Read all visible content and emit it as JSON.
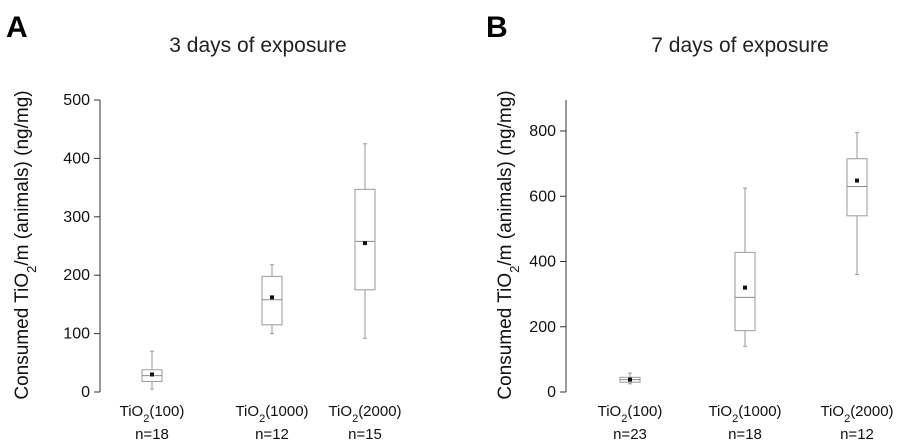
{
  "figure_labels": {
    "panel_a": "A",
    "panel_b": "B"
  },
  "chart_data": [
    {
      "type": "box",
      "panel": "A",
      "title": "3 days of exposure",
      "ylabel": "Consumed TiO2/m (animals) (ng/mg)",
      "ylim": [
        0,
        500
      ],
      "yticks": [
        0,
        100,
        200,
        300,
        400,
        500
      ],
      "categories": [
        "TiO2(100)",
        "TiO2(1000)",
        "TiO2(2000)"
      ],
      "n_labels": [
        "n=18",
        "n=12",
        "n=15"
      ],
      "boxes": [
        {
          "whisker_low": 5,
          "q1": 18,
          "median": 28,
          "q3": 38,
          "whisker_high": 70,
          "mean": 30
        },
        {
          "whisker_low": 100,
          "q1": 115,
          "median": 158,
          "q3": 198,
          "whisker_high": 218,
          "mean": 162
        },
        {
          "whisker_low": 92,
          "q1": 175,
          "median": 258,
          "q3": 347,
          "whisker_high": 425,
          "mean": 255
        }
      ]
    },
    {
      "type": "box",
      "panel": "B",
      "title": "7 days of exposure",
      "ylabel": "Consumed TiO2/m (animals) (ng/mg)",
      "ylim": [
        0,
        900
      ],
      "yticks": [
        0,
        200,
        400,
        600,
        800
      ],
      "categories": [
        "TiO2(100)",
        "TiO2(1000)",
        "TiO2(2000)"
      ],
      "n_labels": [
        "n=23",
        "n=18",
        "n=12"
      ],
      "boxes": [
        {
          "whisker_low": 25,
          "q1": 30,
          "median": 38,
          "q3": 45,
          "whisker_high": 58,
          "mean": 38
        },
        {
          "whisker_low": 140,
          "q1": 188,
          "median": 290,
          "q3": 428,
          "whisker_high": 625,
          "mean": 320
        },
        {
          "whisker_low": 360,
          "q1": 540,
          "median": 630,
          "q3": 715,
          "whisker_high": 795,
          "mean": 648
        }
      ]
    }
  ]
}
